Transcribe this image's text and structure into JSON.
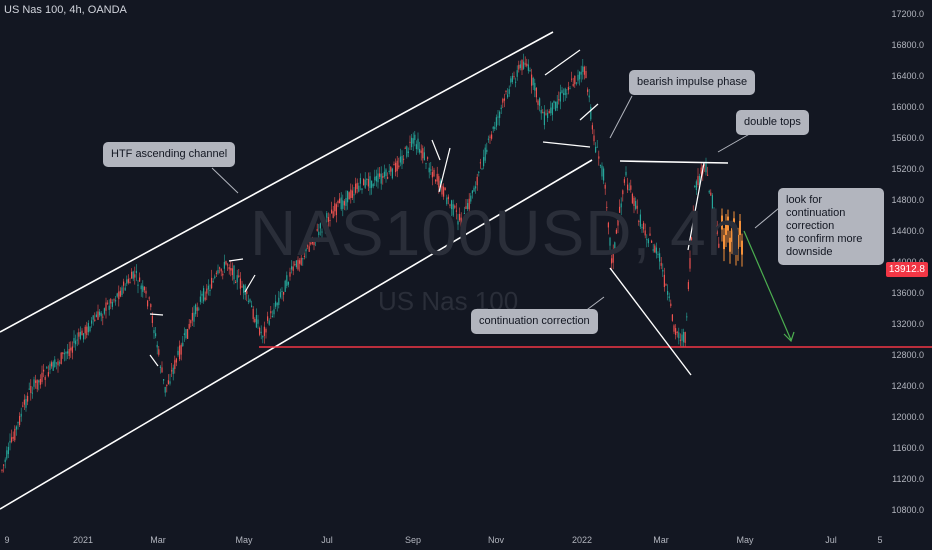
{
  "symbol_line": "US Nas 100, 4h, OANDA",
  "watermark": {
    "main": "NAS100USD, 4h",
    "sub": "US Nas 100"
  },
  "last_price": "13912.8",
  "annotations": {
    "htf_channel": "HTF ascending channel",
    "bearish_impulse": "bearish impulse phase",
    "double_tops": "double tops",
    "continuation_correction": "continuation correction",
    "look_for": [
      "look for continuation",
      "correction",
      "to confirm more",
      "downside"
    ]
  },
  "colors": {
    "background": "#131722",
    "up_candle": "#26a69a",
    "down_candle": "#ef5350",
    "projection_candle": "#f4913a",
    "support_line": "#f23645",
    "target_arrow": "#4caf50",
    "drawing": "#ffffff",
    "callout_bg": "#b2b5be"
  },
  "chart_data": {
    "type": "candlestick",
    "title": "US Nas 100, 4h, OANDA",
    "y_axis": {
      "ticks": [
        10800,
        11200,
        11600,
        12000,
        12400,
        12800,
        13200,
        13600,
        14000,
        14400,
        14800,
        15200,
        15600,
        16000,
        16400,
        16800,
        17200
      ],
      "tick_labels": [
        "10800.0",
        "11200.0",
        "11600.0",
        "12000.0",
        "12400.0",
        "12800.0",
        "13200.0",
        "13600.0",
        "14000.0",
        "14400.0",
        "14800.0",
        "15200.0",
        "15600.0",
        "16000.0",
        "16400.0",
        "16800.0",
        "17200.0"
      ],
      "range": [
        10650,
        17350
      ]
    },
    "x_axis": {
      "tick_labels": [
        "9",
        "2021",
        "Mar",
        "May",
        "Jul",
        "Sep",
        "Nov",
        "2022",
        "Mar",
        "May",
        "Jul",
        "5"
      ]
    },
    "approx_close_path": [
      [
        "2020-09",
        11400
      ],
      [
        "2020-10",
        11800
      ],
      [
        "2020-11",
        12100
      ],
      [
        "2020-12",
        12800
      ],
      [
        "2021-01",
        13400
      ],
      [
        "2021-02",
        13800
      ],
      [
        "2021-03",
        12800
      ],
      [
        "2021-04",
        13900
      ],
      [
        "2021-05",
        13100
      ],
      [
        "2021-06",
        14100
      ],
      [
        "2021-07",
        14900
      ],
      [
        "2021-08",
        15200
      ],
      [
        "2021-09",
        15500
      ],
      [
        "2021-10",
        14800
      ],
      [
        "2021-11",
        16400
      ],
      [
        "2021-12",
        16200
      ],
      [
        "2022-01",
        15000
      ],
      [
        "2022-02",
        14200
      ],
      [
        "2022-03",
        13100
      ],
      [
        "2022-03-28",
        15200
      ],
      [
        "2022-04",
        14000
      ]
    ],
    "support_level": 12920,
    "last_price": 13912.8
  }
}
